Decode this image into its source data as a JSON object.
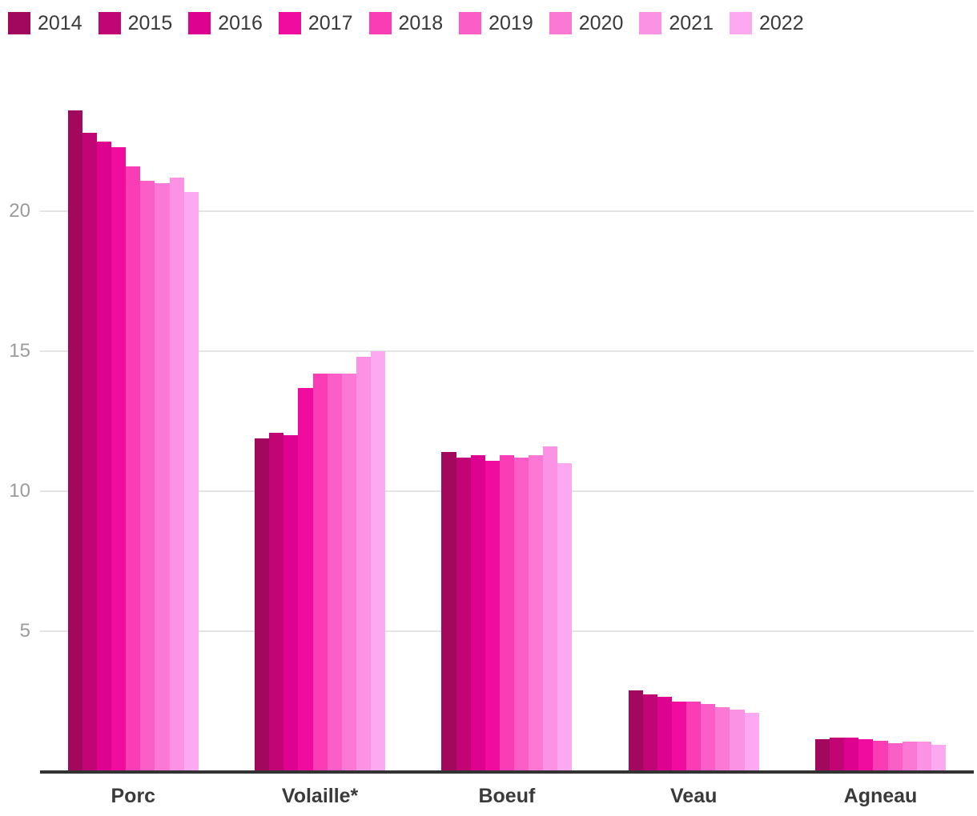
{
  "chart_data": {
    "type": "bar",
    "title": "",
    "xlabel": "",
    "ylabel": "",
    "categories": [
      "Porc",
      "Volaille*",
      "Boeuf",
      "Veau",
      "Agneau"
    ],
    "series": [
      {
        "name": "2014",
        "color": "#A2085E",
        "values": [
          23.6,
          11.9,
          11.4,
          2.9,
          1.15
        ]
      },
      {
        "name": "2015",
        "color": "#C20574",
        "values": [
          22.8,
          12.1,
          11.2,
          2.75,
          1.2
        ]
      },
      {
        "name": "2016",
        "color": "#DE0290",
        "values": [
          22.5,
          12.0,
          11.3,
          2.65,
          1.2
        ]
      },
      {
        "name": "2017",
        "color": "#F10CA0",
        "values": [
          22.3,
          13.7,
          11.1,
          2.5,
          1.15
        ]
      },
      {
        "name": "2018",
        "color": "#FB3DB5",
        "values": [
          21.6,
          14.2,
          11.3,
          2.5,
          1.1
        ]
      },
      {
        "name": "2019",
        "color": "#FB5EC6",
        "values": [
          21.1,
          14.2,
          11.2,
          2.4,
          1.0
        ]
      },
      {
        "name": "2020",
        "color": "#FB79D5",
        "values": [
          21.0,
          14.2,
          11.3,
          2.3,
          1.05
        ]
      },
      {
        "name": "2021",
        "color": "#FC92E4",
        "values": [
          21.2,
          14.8,
          11.6,
          2.2,
          1.05
        ]
      },
      {
        "name": "2022",
        "color": "#FDA9F1",
        "values": [
          20.7,
          15.0,
          11.0,
          2.1,
          0.95
        ]
      }
    ],
    "y_ticks": [
      5,
      10,
      15,
      20
    ],
    "ylim": [
      0,
      24.5
    ],
    "grid": "horizontal",
    "legend_position": "top-left"
  },
  "colors": {
    "background": "#FFFFFF",
    "axis_line": "#333333",
    "gridline": "#E4E4E4",
    "tick_label": "#9B9B9B",
    "category_label": "#3A3A3A",
    "legend_label": "#3A3A3A"
  }
}
